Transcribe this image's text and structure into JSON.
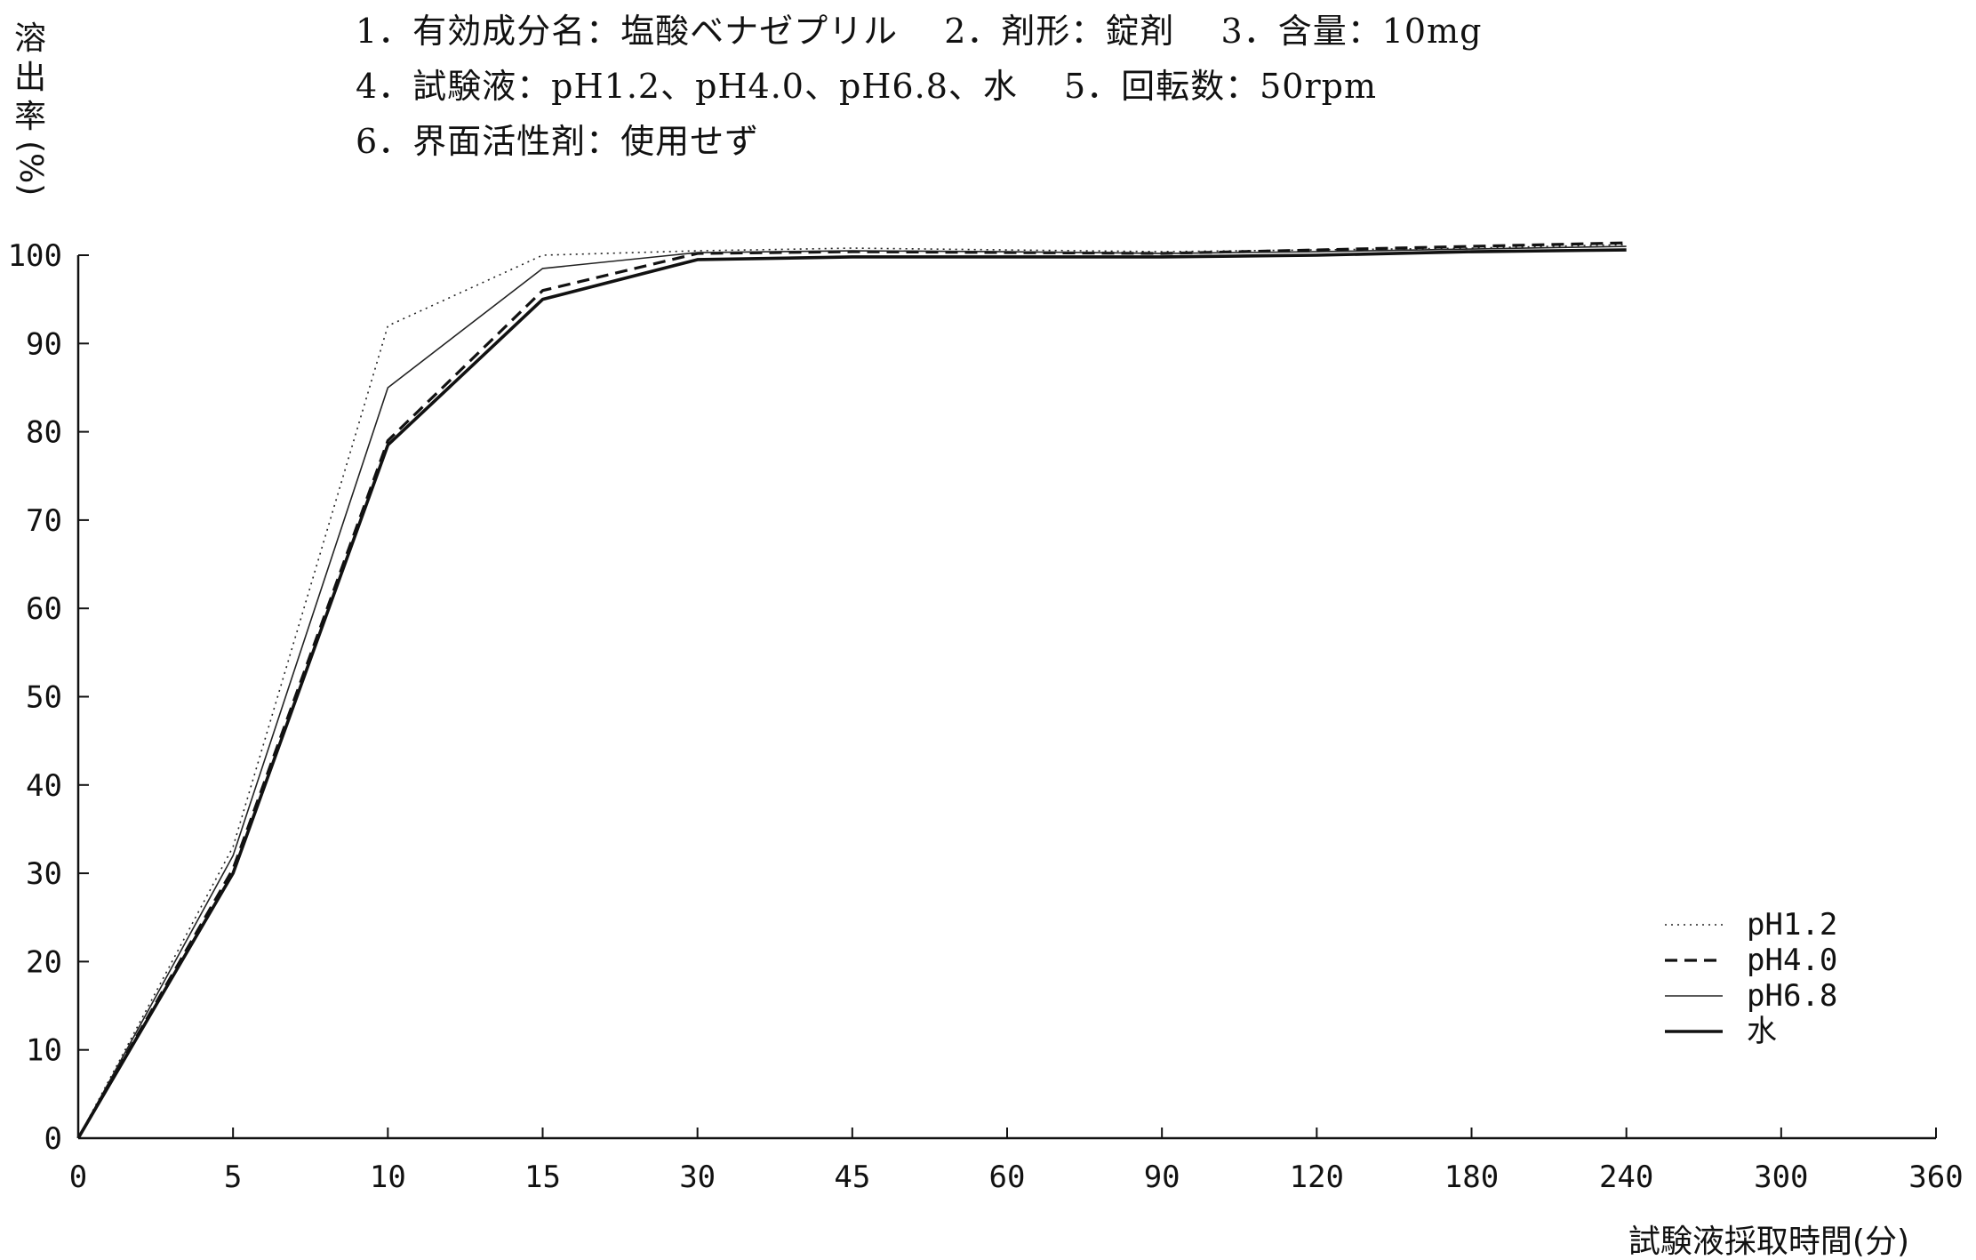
{
  "header": {
    "lines": [
      "1．有効成分名：塩酸ベナゼプリル　 2．剤形：錠剤　 3．含量：10mg",
      "4．試験液：pH1.2、pH4.0、pH6.8、水　 5．回転数：50rpm",
      "6．界面活性剤：使用せず"
    ]
  },
  "chart_data": {
    "type": "line",
    "title": "",
    "ylabel_chars": [
      "溶",
      "出",
      "率"
    ],
    "ylabel_unit": "(%)",
    "xlabel": "試験液採取時間(分)",
    "categories": [
      "0",
      "5",
      "10",
      "15",
      "30",
      "45",
      "60",
      "90",
      "120",
      "180",
      "240",
      "300",
      "360"
    ],
    "x_scale": "categorical (unevenly spaced sampling times, equally spaced ticks)",
    "ylim": [
      0,
      100
    ],
    "yticks": [
      0,
      10,
      20,
      30,
      40,
      50,
      60,
      70,
      80,
      90,
      100
    ],
    "grid": false,
    "legend_position": "right",
    "series": [
      {
        "name": "pH1.2",
        "style": "dotted-thin",
        "color": "#222222",
        "x": [
          "0",
          "5",
          "10",
          "15",
          "30",
          "45",
          "60",
          "90",
          "120",
          "180",
          "240"
        ],
        "values": [
          0,
          33,
          92,
          100,
          100.5,
          100.8,
          100.6,
          100.4,
          100.6,
          100.8,
          101.2
        ]
      },
      {
        "name": "pH4.0",
        "style": "dashed-thick",
        "color": "#111111",
        "x": [
          "0",
          "5",
          "10",
          "15",
          "30",
          "45",
          "60",
          "90",
          "120",
          "180",
          "240"
        ],
        "values": [
          0,
          30.5,
          79,
          96,
          100.2,
          100.4,
          100.3,
          100.2,
          100.6,
          101,
          101.4
        ]
      },
      {
        "name": "pH6.8",
        "style": "solid-thin",
        "color": "#222222",
        "x": [
          "0",
          "5",
          "10",
          "15",
          "30",
          "45",
          "60",
          "90",
          "120",
          "180",
          "240"
        ],
        "values": [
          0,
          32,
          85,
          98.5,
          100.3,
          100.5,
          100.4,
          100.2,
          100.4,
          100.7,
          101
        ]
      },
      {
        "name": "水",
        "style": "solid-thick",
        "color": "#111111",
        "x": [
          "0",
          "5",
          "10",
          "15",
          "30",
          "45",
          "60",
          "90",
          "120",
          "180",
          "240"
        ],
        "values": [
          0,
          30,
          78.5,
          95,
          99.5,
          99.8,
          99.8,
          99.8,
          100,
          100.4,
          100.6
        ]
      }
    ]
  }
}
